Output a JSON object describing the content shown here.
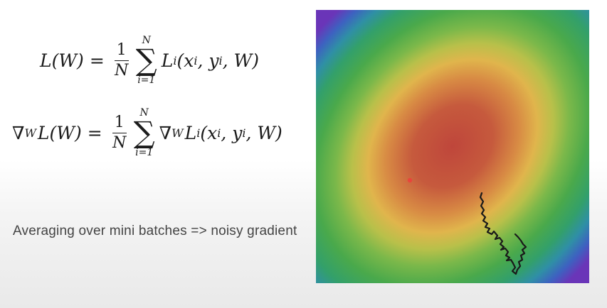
{
  "equations": {
    "loss": {
      "lhs": "L(W)",
      "equals": "=",
      "frac_num": "1",
      "frac_den": "N",
      "sum_upper": "N",
      "sum_lower": "i=1",
      "term": "L",
      "term_sub": "i",
      "term_args": "(x",
      "arg_x_sub": "i",
      "arg_sep": ", y",
      "arg_y_sub": "i",
      "arg_tail": ", W)"
    },
    "gradient": {
      "nabla": "∇",
      "nabla_sub": "W",
      "lhs": "L(W)",
      "equals": "=",
      "frac_num": "1",
      "frac_den": "N",
      "sum_upper": "N",
      "sum_lower": "i=1",
      "term_nabla": "∇",
      "term_nabla_sub": "W",
      "term": "L",
      "term_sub": "i",
      "term_args": "(x",
      "arg_x_sub": "i",
      "arg_sep": ", y",
      "arg_y_sub": "i",
      "arg_tail": ", W)"
    }
  },
  "caption": "Averaging over mini batches => noisy gradient",
  "plot": {
    "minimum_marker_color": "#e8453c",
    "path_color": "#1a1a1a",
    "colormap": [
      "#c0473c",
      "#d26a3f",
      "#e3b24a",
      "#c9c24a",
      "#6fb54a",
      "#3fa84c",
      "#2fa08a",
      "#3a70c2",
      "#5a3fb8"
    ]
  }
}
